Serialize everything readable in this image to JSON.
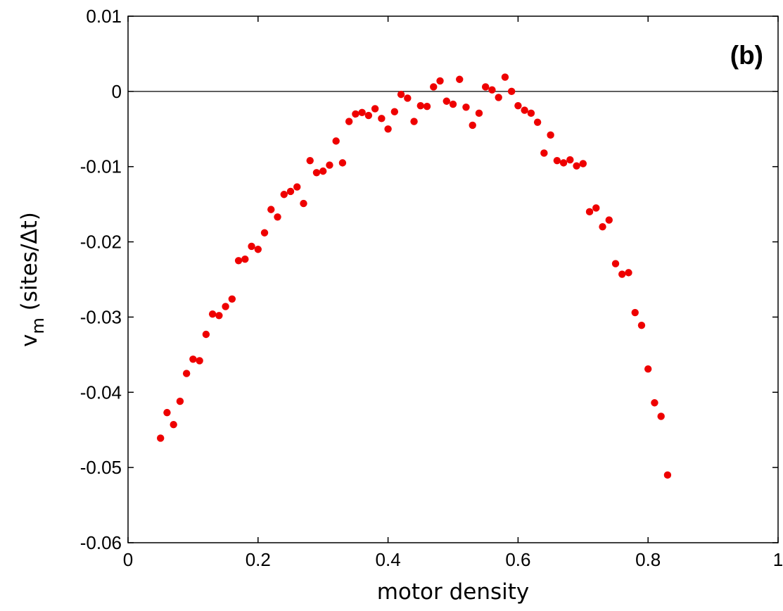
{
  "chart_data": {
    "type": "scatter",
    "panel_label": "(b)",
    "xlabel": "motor density",
    "ylabel_main": "v",
    "ylabel_sub": "m",
    "ylabel_unit": " (sites/Δt)",
    "xlim": [
      0,
      1
    ],
    "ylim": [
      -0.06,
      0.01
    ],
    "x_ticks": [
      0,
      0.2,
      0.4,
      0.6,
      0.8,
      1
    ],
    "x_tick_labels": [
      "0",
      "0.2",
      "0.4",
      "0.6",
      "0.8",
      "1"
    ],
    "y_ticks": [
      -0.06,
      -0.05,
      -0.04,
      -0.03,
      -0.02,
      -0.01,
      0,
      0.01
    ],
    "y_tick_labels": [
      "-0.06",
      "-0.05",
      "-0.04",
      "-0.03",
      "-0.02",
      "-0.01",
      "0",
      "0.01"
    ],
    "zero_line": true,
    "grid": false,
    "marker_color": "#ee0000",
    "points": [
      [
        0.05,
        -0.0461
      ],
      [
        0.06,
        -0.0427
      ],
      [
        0.07,
        -0.0443
      ],
      [
        0.08,
        -0.0412
      ],
      [
        0.09,
        -0.0375
      ],
      [
        0.1,
        -0.0356
      ],
      [
        0.11,
        -0.0358
      ],
      [
        0.12,
        -0.0323
      ],
      [
        0.13,
        -0.0296
      ],
      [
        0.14,
        -0.0298
      ],
      [
        0.15,
        -0.0286
      ],
      [
        0.16,
        -0.0276
      ],
      [
        0.17,
        -0.0225
      ],
      [
        0.18,
        -0.0223
      ],
      [
        0.19,
        -0.0206
      ],
      [
        0.2,
        -0.021
      ],
      [
        0.21,
        -0.0188
      ],
      [
        0.22,
        -0.0157
      ],
      [
        0.23,
        -0.0167
      ],
      [
        0.24,
        -0.0137
      ],
      [
        0.25,
        -0.0133
      ],
      [
        0.26,
        -0.0127
      ],
      [
        0.27,
        -0.0149
      ],
      [
        0.28,
        -0.0092
      ],
      [
        0.29,
        -0.0108
      ],
      [
        0.3,
        -0.0106
      ],
      [
        0.31,
        -0.0098
      ],
      [
        0.32,
        -0.0066
      ],
      [
        0.33,
        -0.0095
      ],
      [
        0.34,
        -0.004
      ],
      [
        0.35,
        -0.003
      ],
      [
        0.36,
        -0.0028
      ],
      [
        0.37,
        -0.0032
      ],
      [
        0.38,
        -0.0023
      ],
      [
        0.39,
        -0.0036
      ],
      [
        0.4,
        -0.005
      ],
      [
        0.41,
        -0.0027
      ],
      [
        0.42,
        -0.0004
      ],
      [
        0.43,
        -0.0009
      ],
      [
        0.44,
        -0.004
      ],
      [
        0.45,
        -0.0019
      ],
      [
        0.46,
        -0.002
      ],
      [
        0.47,
        0.0006
      ],
      [
        0.48,
        0.0014
      ],
      [
        0.49,
        -0.0013
      ],
      [
        0.5,
        -0.0017
      ],
      [
        0.51,
        0.0016
      ],
      [
        0.52,
        -0.0021
      ],
      [
        0.53,
        -0.0045
      ],
      [
        0.54,
        -0.0029
      ],
      [
        0.55,
        0.0006
      ],
      [
        0.56,
        0.0002
      ],
      [
        0.57,
        -0.0008
      ],
      [
        0.58,
        0.0019
      ],
      [
        0.59,
        0.0
      ],
      [
        0.6,
        -0.0019
      ],
      [
        0.61,
        -0.0025
      ],
      [
        0.62,
        -0.0029
      ],
      [
        0.63,
        -0.0041
      ],
      [
        0.64,
        -0.0082
      ],
      [
        0.65,
        -0.0058
      ],
      [
        0.66,
        -0.0092
      ],
      [
        0.67,
        -0.0095
      ],
      [
        0.68,
        -0.0091
      ],
      [
        0.69,
        -0.0099
      ],
      [
        0.7,
        -0.0096
      ],
      [
        0.71,
        -0.016
      ],
      [
        0.72,
        -0.0155
      ],
      [
        0.73,
        -0.018
      ],
      [
        0.74,
        -0.0171
      ],
      [
        0.75,
        -0.0229
      ],
      [
        0.76,
        -0.0243
      ],
      [
        0.77,
        -0.0241
      ],
      [
        0.78,
        -0.0294
      ],
      [
        0.79,
        -0.0311
      ],
      [
        0.8,
        -0.0369
      ],
      [
        0.81,
        -0.0414
      ],
      [
        0.82,
        -0.0432
      ],
      [
        0.83,
        -0.051
      ]
    ]
  }
}
